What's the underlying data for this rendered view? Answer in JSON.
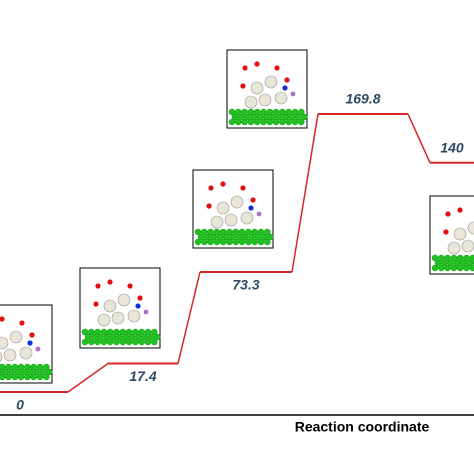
{
  "chart_data": {
    "type": "energy-profile",
    "x_label": "Reaction coordinate",
    "values": [
      0,
      17.4,
      73.3,
      169.8,
      140
    ],
    "color": "#d62728",
    "label_color": "#2e4a66"
  }
}
